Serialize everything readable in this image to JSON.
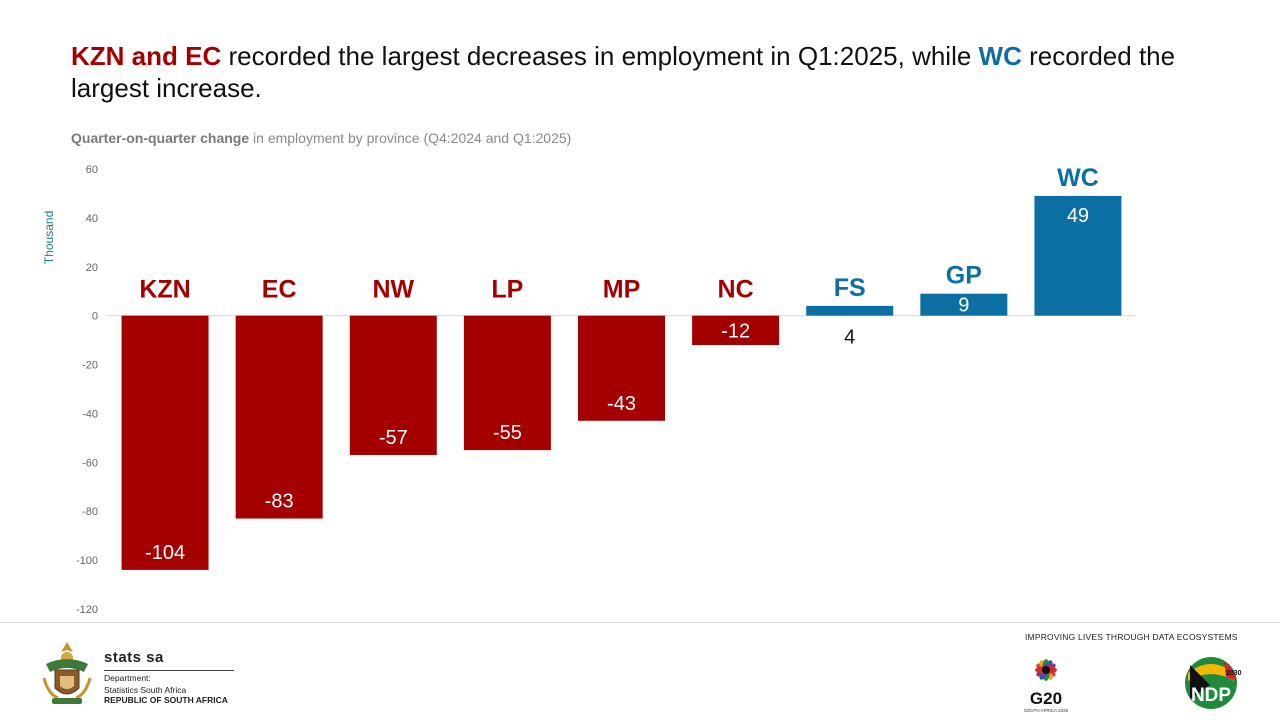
{
  "headline": {
    "part1_red": "KZN and EC",
    "part2": " recorded the largest decreases in employment in Q1:2025, while ",
    "part3_blue": "WC",
    "part4": " recorded the largest increase."
  },
  "subtitle": {
    "bold": "Quarter-on-quarter change",
    "rest": " in employment by province  (Q4:2024 and Q1:2025)"
  },
  "colors": {
    "negative": "#a50000",
    "positive": "#0b6fa4",
    "neutral_label": "#111111"
  },
  "chart_data": {
    "type": "bar",
    "ylabel": "Thousand",
    "ylim": [
      -120,
      60
    ],
    "yticks": [
      60,
      40,
      20,
      0,
      -20,
      -40,
      -60,
      -80,
      -100,
      -120
    ],
    "grid": false,
    "legend": "none",
    "categories": [
      "KZN",
      "EC",
      "NW",
      "LP",
      "MP",
      "NC",
      "FS",
      "GP",
      "WC"
    ],
    "values": [
      -104,
      -83,
      -57,
      -55,
      -43,
      -12,
      4,
      9,
      49
    ]
  },
  "footer": {
    "org_name": "stats sa",
    "line1": "Department:",
    "line2": "Statistics South Africa",
    "line3": "REPUBLIC OF SOUTH AFRICA",
    "tagline": "IMPROVING LIVES THROUGH DATA ECOSYSTEMS",
    "g20_text": "G20",
    "g20_sub": "SOUTH AFRICA 2025",
    "ndp_text": "NDP",
    "ndp_year": "2030"
  },
  "icons": [
    "coat-of-arms-icon",
    "g20-logo-icon",
    "ndp-logo-icon"
  ]
}
